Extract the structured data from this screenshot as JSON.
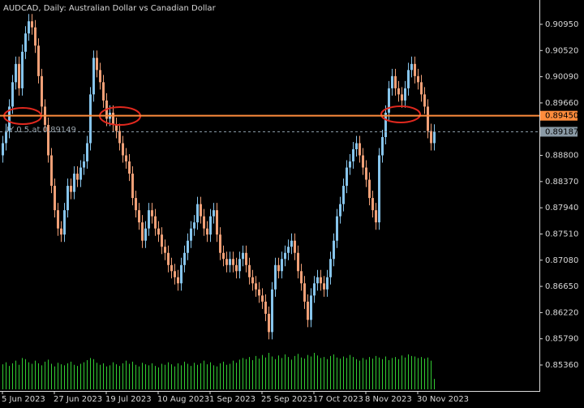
{
  "chart_data": {
    "type": "candlestick",
    "title": "AUDCAD, Daily:  Australian Dollar vs Canadian Dollar",
    "categories": [
      "5 Jun 2023",
      null,
      null,
      null,
      null,
      null,
      null,
      null,
      null,
      null,
      null,
      null,
      null,
      null,
      null,
      null,
      "27 Jun 2023",
      null,
      null,
      null,
      null,
      null,
      null,
      null,
      null,
      null,
      null,
      null,
      null,
      null,
      null,
      null,
      "19 Jul 2023",
      null,
      null,
      null,
      null,
      null,
      null,
      null,
      null,
      null,
      null,
      null,
      null,
      null,
      null,
      null,
      "10 Aug 2023",
      null,
      null,
      null,
      null,
      null,
      null,
      null,
      null,
      null,
      null,
      null,
      null,
      null,
      null,
      null,
      "1 Sep 2023",
      null,
      null,
      null,
      null,
      null,
      null,
      null,
      null,
      null,
      null,
      null,
      null,
      null,
      null,
      null,
      "25 Sep 2023",
      null,
      null,
      null,
      null,
      null,
      null,
      null,
      null,
      null,
      null,
      null,
      null,
      null,
      null,
      null,
      "17 Oct 2023",
      null,
      null,
      null,
      null,
      null,
      null,
      null,
      null,
      null,
      null,
      null,
      null,
      null,
      null,
      null,
      "8 Nov 2023",
      null,
      null,
      null,
      null,
      null,
      null,
      null,
      null,
      null,
      null,
      null,
      null,
      null,
      null,
      null,
      "30 Nov 2023",
      null,
      null,
      null,
      null,
      null
    ],
    "open": [
      0.888,
      0.89,
      0.892,
      0.896,
      0.9,
      0.903,
      0.899,
      0.905,
      0.908,
      0.91,
      0.909,
      0.906,
      0.901,
      0.896,
      0.893,
      0.888,
      0.883,
      0.879,
      0.876,
      0.875,
      0.879,
      0.883,
      0.882,
      0.885,
      0.884,
      0.886,
      0.887,
      0.89,
      0.898,
      0.904,
      0.902,
      0.9,
      0.897,
      0.894,
      0.895,
      0.893,
      0.892,
      0.89,
      0.888,
      0.887,
      0.885,
      0.881,
      0.879,
      0.877,
      0.874,
      0.876,
      0.879,
      0.878,
      0.876,
      0.875,
      0.873,
      0.872,
      0.87,
      0.869,
      0.868,
      0.867,
      0.87,
      0.872,
      0.874,
      0.876,
      0.877,
      0.88,
      0.878,
      0.876,
      0.875,
      0.878,
      0.879,
      0.875,
      0.872,
      0.871,
      0.87,
      0.871,
      0.87,
      0.869,
      0.871,
      0.872,
      0.87,
      0.868,
      0.867,
      0.866,
      0.865,
      0.864,
      0.862,
      0.859,
      0.866,
      0.87,
      0.869,
      0.871,
      0.872,
      0.873,
      0.874,
      0.872,
      0.869,
      0.867,
      0.864,
      0.861,
      0.865,
      0.867,
      0.868,
      0.867,
      0.866,
      0.868,
      0.871,
      0.874,
      0.878,
      0.88,
      0.883,
      0.886,
      0.887,
      0.889,
      0.89,
      0.888,
      0.886,
      0.884,
      0.881,
      0.879,
      0.877,
      0.888,
      0.891,
      0.895,
      0.899,
      0.901,
      0.899,
      0.898,
      0.897,
      0.899,
      0.902,
      0.903,
      0.901,
      0.9,
      0.898,
      0.896,
      0.892,
      0.89
    ],
    "high": [
      0.8912,
      0.8932,
      0.8972,
      0.9012,
      0.9042,
      0.9042,
      0.9062,
      0.9092,
      0.9112,
      0.9112,
      0.9102,
      0.9072,
      0.9022,
      0.8972,
      0.8942,
      0.8892,
      0.8842,
      0.8802,
      0.8772,
      0.8802,
      0.8842,
      0.8842,
      0.8862,
      0.8862,
      0.8872,
      0.8882,
      0.8912,
      0.8992,
      0.9052,
      0.9052,
      0.9032,
      0.9012,
      0.8982,
      0.8962,
      0.8962,
      0.8942,
      0.8932,
      0.8912,
      0.8892,
      0.8882,
      0.8862,
      0.8822,
      0.8802,
      0.8782,
      0.8772,
      0.8802,
      0.8802,
      0.8792,
      0.8772,
      0.8762,
      0.8742,
      0.8732,
      0.8712,
      0.8702,
      0.8692,
      0.8712,
      0.8732,
      0.8752,
      0.8772,
      0.8782,
      0.8812,
      0.8812,
      0.8792,
      0.8772,
      0.8792,
      0.8802,
      0.8802,
      0.8762,
      0.8732,
      0.8722,
      0.8722,
      0.8722,
      0.8712,
      0.8722,
      0.8732,
      0.8732,
      0.8712,
      0.8692,
      0.8682,
      0.8672,
      0.8662,
      0.8652,
      0.8632,
      0.8672,
      0.8712,
      0.8712,
      0.8722,
      0.8732,
      0.8742,
      0.8752,
      0.8752,
      0.8732,
      0.8702,
      0.8682,
      0.8652,
      0.8662,
      0.8682,
      0.8692,
      0.8692,
      0.8682,
      0.8692,
      0.8722,
      0.8752,
      0.8792,
      0.8812,
      0.8842,
      0.8872,
      0.8882,
      0.8902,
      0.8912,
      0.8912,
      0.8892,
      0.8872,
      0.8852,
      0.8822,
      0.8802,
      0.8892,
      0.8922,
      0.8962,
      0.9002,
      0.9022,
      0.9022,
      0.9002,
      0.8992,
      0.9002,
      0.9032,
      0.9042,
      0.9042,
      0.9022,
      0.9012,
      0.8992,
      0.8972,
      0.8932,
      0.8931
    ],
    "low": [
      0.8868,
      0.8888,
      0.8908,
      0.8948,
      0.8988,
      0.8978,
      0.8978,
      0.9038,
      0.9068,
      0.9078,
      0.9048,
      0.8998,
      0.8948,
      0.8918,
      0.8868,
      0.8818,
      0.8778,
      0.8748,
      0.8738,
      0.8738,
      0.8778,
      0.8808,
      0.8808,
      0.8828,
      0.8828,
      0.8848,
      0.8858,
      0.8888,
      0.8968,
      0.9008,
      0.8988,
      0.8958,
      0.8928,
      0.8928,
      0.8918,
      0.8908,
      0.8888,
      0.8868,
      0.8858,
      0.8838,
      0.8798,
      0.8778,
      0.8758,
      0.8728,
      0.8728,
      0.8748,
      0.8768,
      0.8748,
      0.8738,
      0.8718,
      0.8708,
      0.8688,
      0.8678,
      0.8668,
      0.8658,
      0.8658,
      0.8688,
      0.8708,
      0.8728,
      0.8748,
      0.8758,
      0.8768,
      0.8748,
      0.8738,
      0.8738,
      0.8768,
      0.8738,
      0.8708,
      0.8698,
      0.8688,
      0.8688,
      0.8688,
      0.8678,
      0.8678,
      0.8698,
      0.8688,
      0.8668,
      0.8658,
      0.8648,
      0.8638,
      0.8628,
      0.8608,
      0.8578,
      0.8578,
      0.8648,
      0.8678,
      0.8678,
      0.8698,
      0.8708,
      0.8718,
      0.8708,
      0.8678,
      0.8658,
      0.8628,
      0.8598,
      0.8598,
      0.8638,
      0.8658,
      0.8658,
      0.8648,
      0.8648,
      0.8668,
      0.8698,
      0.8728,
      0.8768,
      0.8788,
      0.8818,
      0.8848,
      0.8858,
      0.8878,
      0.8868,
      0.8848,
      0.8828,
      0.8798,
      0.8778,
      0.8758,
      0.8758,
      0.8868,
      0.8898,
      0.8938,
      0.8978,
      0.8978,
      0.8968,
      0.8958,
      0.8958,
      0.8978,
      0.9008,
      0.8998,
      0.8988,
      0.8968,
      0.8948,
      0.8908,
      0.8888,
      0.8888
    ],
    "close": [
      0.89,
      0.892,
      0.896,
      0.9,
      0.903,
      0.899,
      0.905,
      0.908,
      0.91,
      0.909,
      0.906,
      0.901,
      0.896,
      0.893,
      0.888,
      0.883,
      0.879,
      0.876,
      0.875,
      0.879,
      0.883,
      0.882,
      0.885,
      0.884,
      0.886,
      0.887,
      0.89,
      0.898,
      0.904,
      0.902,
      0.9,
      0.897,
      0.894,
      0.895,
      0.893,
      0.892,
      0.89,
      0.888,
      0.887,
      0.885,
      0.881,
      0.879,
      0.877,
      0.874,
      0.876,
      0.879,
      0.878,
      0.876,
      0.875,
      0.873,
      0.872,
      0.87,
      0.869,
      0.868,
      0.867,
      0.87,
      0.872,
      0.874,
      0.876,
      0.877,
      0.88,
      0.878,
      0.876,
      0.875,
      0.878,
      0.879,
      0.875,
      0.872,
      0.871,
      0.87,
      0.871,
      0.87,
      0.869,
      0.871,
      0.872,
      0.87,
      0.868,
      0.867,
      0.866,
      0.865,
      0.864,
      0.862,
      0.859,
      0.866,
      0.87,
      0.869,
      0.871,
      0.872,
      0.873,
      0.874,
      0.872,
      0.869,
      0.867,
      0.864,
      0.861,
      0.865,
      0.867,
      0.868,
      0.867,
      0.866,
      0.868,
      0.871,
      0.874,
      0.878,
      0.88,
      0.883,
      0.886,
      0.887,
      0.889,
      0.89,
      0.888,
      0.886,
      0.884,
      0.881,
      0.879,
      0.877,
      0.888,
      0.891,
      0.895,
      0.899,
      0.901,
      0.899,
      0.898,
      0.897,
      0.899,
      0.902,
      0.903,
      0.901,
      0.9,
      0.898,
      0.896,
      0.892,
      0.89,
      0.8919
    ],
    "volume": [
      48,
      52,
      45,
      50,
      55,
      47,
      60,
      58,
      52,
      49,
      55,
      50,
      46,
      53,
      57,
      49,
      44,
      51,
      48,
      46,
      50,
      53,
      47,
      45,
      49,
      52,
      56,
      60,
      58,
      51,
      47,
      50,
      44,
      46,
      52,
      48,
      45,
      50,
      55,
      49,
      53,
      47,
      44,
      51,
      48,
      46,
      50,
      45,
      42,
      49,
      47,
      52,
      48,
      44,
      50,
      46,
      53,
      49,
      45,
      51,
      47,
      50,
      55,
      48,
      52,
      46,
      44,
      50,
      53,
      47,
      49,
      55,
      51,
      57,
      60,
      58,
      62,
      56,
      64,
      59,
      66,
      61,
      70,
      63,
      58,
      65,
      60,
      67,
      62,
      57,
      64,
      68,
      61,
      59,
      66,
      63,
      70,
      65,
      60,
      62,
      58,
      64,
      67,
      61,
      59,
      63,
      60,
      66,
      62,
      58,
      55,
      60,
      57,
      62,
      59,
      64,
      61,
      58,
      63,
      56,
      60,
      62,
      58,
      65,
      61,
      67,
      64,
      63,
      60,
      62,
      59,
      61,
      55,
      20
    ],
    "up_color": "#87c5ec",
    "down_color": "#f0a077",
    "volume_color": "#32cd32",
    "ylim": [
      0.84934,
      0.91349
    ],
    "yticks": [
      {
        "value": 0.9095,
        "label": "0.90950"
      },
      {
        "value": 0.9052,
        "label": "0.90520"
      },
      {
        "value": 0.9009,
        "label": "0.90090"
      },
      {
        "value": 0.8966,
        "label": "0.89660"
      },
      {
        "value": 0.888,
        "label": "0.88800"
      },
      {
        "value": 0.8837,
        "label": "0.88370"
      },
      {
        "value": 0.8794,
        "label": "0.87940"
      },
      {
        "value": 0.8751,
        "label": "0.87510"
      },
      {
        "value": 0.8708,
        "label": "0.87080"
      },
      {
        "value": 0.8665,
        "label": "0.86650"
      },
      {
        "value": 0.8622,
        "label": "0.86220"
      },
      {
        "value": 0.8579,
        "label": "0.85790"
      },
      {
        "value": 0.8536,
        "label": "0.85360"
      }
    ],
    "hlines": [
      {
        "value": 0.8945,
        "label": "0.89450",
        "color": "#ff8c3c",
        "dashed": false
      },
      {
        "value": 0.89187,
        "label": "0.89187",
        "color": "#8a9aa6",
        "dashed": true
      }
    ],
    "annotation": "IY 0.5 at 0.89149",
    "grid": false
  }
}
